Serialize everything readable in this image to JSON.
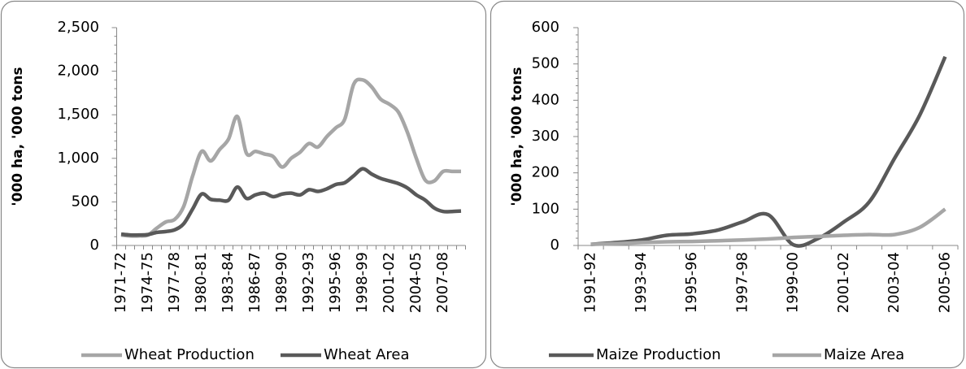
{
  "chart_data": [
    {
      "type": "line",
      "smooth": true,
      "y_label": "'000 ha, '000 tons",
      "legend": "bottom",
      "categories": [
        "1971-72",
        null,
        null,
        "1974-75",
        null,
        null,
        "1977-78",
        null,
        null,
        "1980-81",
        null,
        null,
        "1983-84",
        null,
        null,
        "1986-87",
        null,
        null,
        "1989-90",
        null,
        null,
        "1992-93",
        null,
        null,
        "1995-96",
        null,
        null,
        "1998-99",
        null,
        null,
        "2001-02",
        null,
        null,
        "2004-05",
        null,
        null,
        "2007-08",
        null,
        null
      ],
      "series": [
        {
          "name": "Wheat Production",
          "color": "#a6a6a6",
          "values": [
            120,
            110,
            110,
            120,
            200,
            270,
            300,
            450,
            800,
            1080,
            970,
            1100,
            1220,
            1480,
            1060,
            1080,
            1050,
            1020,
            900,
            1000,
            1070,
            1170,
            1130,
            1250,
            1350,
            1450,
            1850,
            1900,
            1820,
            1680,
            1620,
            1530,
            1300,
            1000,
            750,
            740,
            850,
            850,
            850
          ]
        },
        {
          "name": "Wheat Area",
          "color": "#595959",
          "values": [
            130,
            120,
            120,
            125,
            150,
            160,
            180,
            250,
            420,
            590,
            530,
            520,
            520,
            670,
            540,
            580,
            600,
            560,
            590,
            600,
            580,
            640,
            620,
            650,
            700,
            720,
            800,
            880,
            820,
            770,
            740,
            710,
            660,
            580,
            520,
            430,
            390,
            390,
            395
          ]
        }
      ],
      "ylim": [
        0,
        2500
      ],
      "yticks": [
        0,
        500,
        {
          "value": 1000,
          "label": "1,000"
        },
        {
          "value": 1500,
          "label": "1,500"
        },
        {
          "value": 2000,
          "label": "2,000"
        },
        {
          "value": 2500,
          "label": "2,500"
        }
      ]
    },
    {
      "type": "line",
      "smooth": true,
      "y_label": "'000 ha, '000 tons",
      "legend": "bottom",
      "categories": [
        "1991-92",
        null,
        "1993-94",
        null,
        "1995-96",
        null,
        "1997-98",
        null,
        "1999-00",
        null,
        "2001-02",
        null,
        "2003-04",
        null,
        "2005-06"
      ],
      "series": [
        {
          "name": "Maize Production",
          "color": "#595959",
          "values": [
            3,
            8,
            15,
            28,
            32,
            42,
            65,
            85,
            2,
            20,
            65,
            120,
            240,
            360,
            520
          ]
        },
        {
          "name": "Maize Area",
          "color": "#a6a6a6",
          "values": [
            3,
            5,
            8,
            10,
            11,
            13,
            15,
            18,
            22,
            25,
            28,
            30,
            30,
            50,
            100
          ]
        }
      ],
      "ylim": [
        0,
        600
      ],
      "yticks": [
        0,
        100,
        200,
        300,
        400,
        500,
        600
      ]
    }
  ]
}
